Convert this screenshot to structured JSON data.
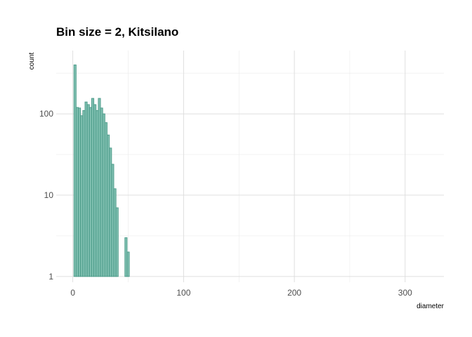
{
  "chart_data": {
    "type": "bar",
    "title": "Bin size = 2, Kitsilano",
    "xlabel": "diameter",
    "ylabel": "count",
    "y_scale": "log10",
    "xlim": [
      -15,
      335
    ],
    "ylim": [
      0.85,
      600
    ],
    "x_ticks": [
      0,
      100,
      200,
      300
    ],
    "y_ticks": [
      1,
      10,
      100
    ],
    "grid": true,
    "bar_color": "#7fbfb0",
    "bar_edge_color": "#4a9a88",
    "bin_width": 2,
    "x": [
      2,
      4,
      6,
      8,
      10,
      12,
      14,
      16,
      18,
      20,
      22,
      24,
      26,
      28,
      30,
      32,
      34,
      36,
      38,
      40,
      48,
      50
    ],
    "values": [
      400,
      120,
      118,
      95,
      110,
      140,
      130,
      120,
      155,
      130,
      110,
      155,
      118,
      100,
      78,
      55,
      38,
      24,
      12,
      7,
      3,
      2
    ],
    "x_tick_labels": [
      "0",
      "100",
      "200",
      "300"
    ],
    "y_tick_labels": [
      "1",
      "10",
      "100"
    ]
  }
}
